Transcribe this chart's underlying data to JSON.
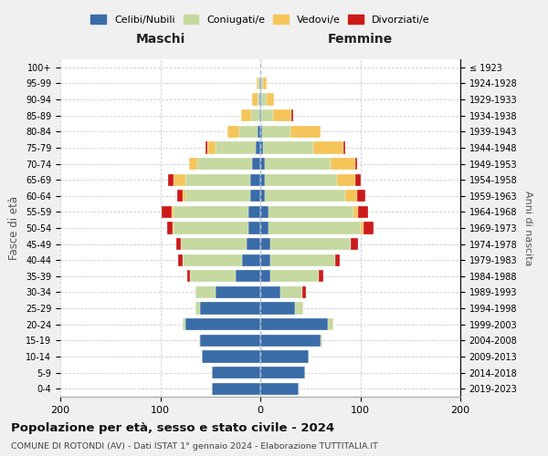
{
  "age_groups": [
    "0-4",
    "5-9",
    "10-14",
    "15-19",
    "20-24",
    "25-29",
    "30-34",
    "35-39",
    "40-44",
    "45-49",
    "50-54",
    "55-59",
    "60-64",
    "65-69",
    "70-74",
    "75-79",
    "80-84",
    "85-89",
    "90-94",
    "95-99",
    "100+"
  ],
  "birth_years": [
    "2019-2023",
    "2014-2018",
    "2009-2013",
    "2004-2008",
    "1999-2003",
    "1994-1998",
    "1989-1993",
    "1984-1988",
    "1979-1983",
    "1974-1978",
    "1969-1973",
    "1964-1968",
    "1959-1963",
    "1954-1958",
    "1949-1953",
    "1944-1948",
    "1939-1943",
    "1934-1938",
    "1929-1933",
    "1924-1928",
    "≤ 1923"
  ],
  "colors": {
    "celibi": "#3a6ca8",
    "coniugati": "#c5d9a0",
    "vedovi": "#f5c55a",
    "divorziati": "#cc1a1a"
  },
  "males": {
    "celibi": [
      48,
      48,
      58,
      60,
      75,
      60,
      45,
      25,
      18,
      14,
      12,
      12,
      10,
      10,
      8,
      5,
      3,
      1,
      1,
      1,
      0
    ],
    "coniugati": [
      0,
      0,
      0,
      1,
      3,
      5,
      20,
      45,
      60,
      65,
      75,
      75,
      65,
      65,
      55,
      40,
      18,
      8,
      2,
      1,
      0
    ],
    "vedovi": [
      0,
      0,
      0,
      0,
      0,
      0,
      0,
      0,
      0,
      0,
      1,
      2,
      3,
      12,
      8,
      8,
      12,
      10,
      5,
      2,
      0
    ],
    "divorziati": [
      0,
      0,
      0,
      0,
      0,
      0,
      0,
      3,
      4,
      5,
      5,
      10,
      5,
      5,
      0,
      2,
      0,
      0,
      0,
      0,
      0
    ]
  },
  "females": {
    "celibi": [
      38,
      45,
      48,
      60,
      68,
      35,
      20,
      10,
      10,
      10,
      8,
      8,
      5,
      5,
      5,
      3,
      2,
      1,
      1,
      1,
      0
    ],
    "coniugati": [
      0,
      0,
      0,
      2,
      5,
      8,
      22,
      48,
      65,
      80,
      92,
      85,
      80,
      72,
      65,
      50,
      28,
      12,
      5,
      2,
      0
    ],
    "vedovi": [
      0,
      0,
      0,
      0,
      0,
      0,
      0,
      0,
      0,
      0,
      3,
      5,
      12,
      18,
      25,
      30,
      30,
      18,
      8,
      3,
      0
    ],
    "divorziati": [
      0,
      0,
      0,
      0,
      0,
      0,
      4,
      5,
      4,
      8,
      10,
      10,
      8,
      5,
      2,
      2,
      0,
      2,
      0,
      0,
      0
    ]
  },
  "title": "Popolazione per età, sesso e stato civile - 2024",
  "subtitle": "COMUNE DI ROTONDI (AV) - Dati ISTAT 1° gennaio 2024 - Elaborazione TUTTITALIA.IT",
  "xlabel_left": "Maschi",
  "xlabel_right": "Femmine",
  "ylabel_left": "Fasce di età",
  "ylabel_right": "Anni di nascita",
  "xlim": 200,
  "legend_labels": [
    "Celibi/Nubili",
    "Coniugati/e",
    "Vedovi/e",
    "Divorziati/e"
  ],
  "bg_color": "#f0f0f0",
  "plot_bg": "#ffffff"
}
